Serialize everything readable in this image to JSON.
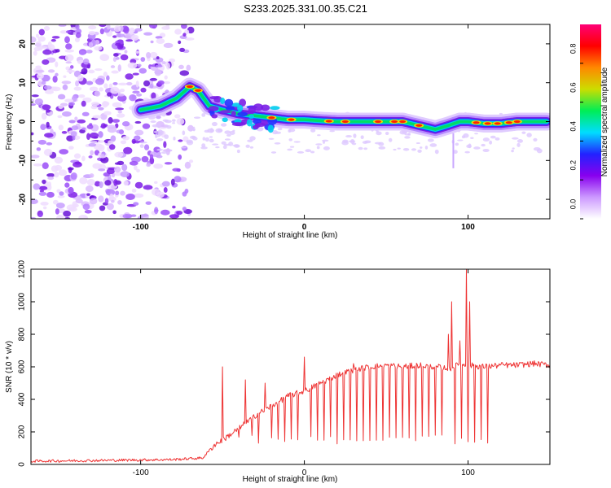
{
  "title": "S233.2025.331.00.35.C21",
  "chart_data": [
    {
      "type": "heatmap",
      "xlabel": "Height of straight line (km)",
      "ylabel": "Frequency (Hz)",
      "xlim": [
        -167,
        150
      ],
      "ylim": [
        -25,
        25
      ],
      "xticks": [
        -100,
        0,
        100
      ],
      "yticks": [
        20,
        10,
        0,
        -10,
        -20
      ],
      "colorbar": {
        "label": "Normalized spectral amplitude",
        "range": [
          0,
          1
        ],
        "ticks": [
          0.0,
          0.2,
          0.4,
          0.6,
          0.8
        ],
        "colormap": [
          "#ffffff",
          "#cc99ff",
          "#8800ee",
          "#2222ff",
          "#00ddff",
          "#00ee55",
          "#ccdd00",
          "#ff8800",
          "#ff0000",
          "#ff0077"
        ]
      },
      "ridge": {
        "x": [
          -100,
          -88,
          -78,
          -70,
          -65,
          -58,
          -50,
          -40,
          -30,
          -20,
          -10,
          0,
          10,
          20,
          30,
          40,
          50,
          60,
          70,
          80,
          88,
          95,
          100,
          110,
          120,
          130,
          140,
          148
        ],
        "y": [
          3,
          4,
          6,
          9,
          8,
          4,
          3,
          2,
          1.5,
          1,
          0.5,
          0.5,
          0.2,
          0,
          0,
          0,
          0,
          0,
          -1,
          -2,
          -1,
          0,
          0,
          -0.5,
          -0.5,
          0,
          0,
          0
        ]
      },
      "noise_region_x": [
        -167,
        -75
      ]
    },
    {
      "type": "line",
      "xlabel": "Height of straight line (km)",
      "ylabel": "SNR (10 * v/v)",
      "xlim": [
        -167,
        150
      ],
      "ylim": [
        0,
        1200
      ],
      "xticks": [
        -100,
        0,
        100
      ],
      "yticks": [
        0,
        200,
        400,
        600,
        800,
        1000,
        1200
      ],
      "color": "#ee3333",
      "envelope": {
        "x": [
          -167,
          -120,
          -80,
          -62,
          -55,
          -50,
          -40,
          -30,
          -20,
          -10,
          0,
          10,
          20,
          30,
          40,
          50,
          60,
          70,
          80,
          90,
          95,
          100,
          110,
          120,
          130,
          140,
          150
        ],
        "y": [
          20,
          25,
          30,
          40,
          120,
          150,
          220,
          300,
          360,
          420,
          450,
          500,
          550,
          580,
          600,
          610,
          600,
          610,
          600,
          590,
          620,
          610,
          600,
          610,
          610,
          620,
          610
        ]
      },
      "spikes": [
        {
          "x": -50,
          "y": 600
        },
        {
          "x": -36,
          "y": 520
        },
        {
          "x": -24,
          "y": 500
        },
        {
          "x": 0,
          "y": 660
        },
        {
          "x": 30,
          "y": 620
        },
        {
          "x": 88,
          "y": 800
        },
        {
          "x": 90,
          "y": 1000
        },
        {
          "x": 95,
          "y": 760
        },
        {
          "x": 99,
          "y": 1200
        },
        {
          "x": 101,
          "y": 1000
        }
      ],
      "dropouts": {
        "x_start": -40,
        "x_end": 112,
        "spacing": 4,
        "depth": 150
      }
    }
  ]
}
